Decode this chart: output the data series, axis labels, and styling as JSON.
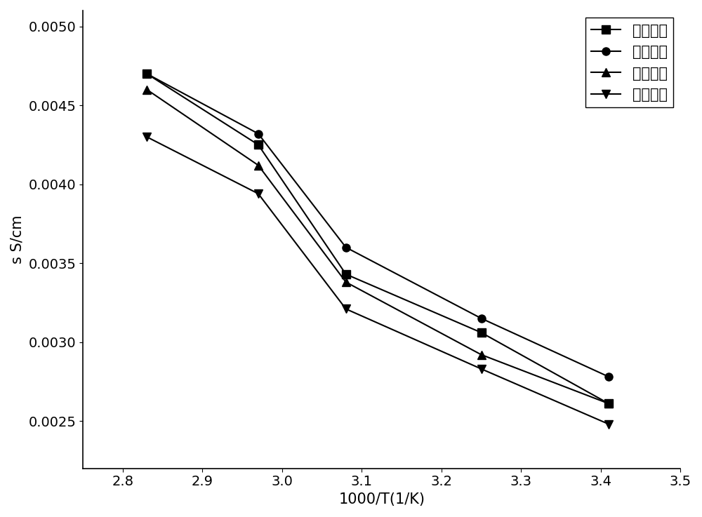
{
  "series": [
    {
      "label": "实施例四",
      "marker": "s",
      "x": [
        2.83,
        2.97,
        3.08,
        3.25,
        3.41
      ],
      "y": [
        0.0047,
        0.00425,
        0.00343,
        0.00306,
        0.00261
      ]
    },
    {
      "label": "实施例一",
      "marker": "o",
      "x": [
        2.83,
        2.97,
        3.08,
        3.25,
        3.41
      ],
      "y": [
        0.0047,
        0.00432,
        0.0036,
        0.00315,
        0.00278
      ]
    },
    {
      "label": "实施例三",
      "marker": "^",
      "x": [
        2.83,
        2.97,
        3.08,
        3.25,
        3.41
      ],
      "y": [
        0.0046,
        0.00412,
        0.00338,
        0.00292,
        0.00261
      ]
    },
    {
      "label": "实施例二",
      "marker": "v",
      "x": [
        2.83,
        2.97,
        3.08,
        3.25,
        3.41
      ],
      "y": [
        0.0043,
        0.00394,
        0.00321,
        0.00283,
        0.00248
      ]
    }
  ],
  "xlabel": "1000/T(1/K)",
  "ylabel": "s S/cm",
  "xlim": [
    2.75,
    3.5
  ],
  "ylim": [
    0.0022,
    0.0051
  ],
  "xticks": [
    2.8,
    2.9,
    3.0,
    3.1,
    3.2,
    3.3,
    3.4,
    3.5
  ],
  "yticks": [
    0.0025,
    0.003,
    0.0035,
    0.004,
    0.0045,
    0.005
  ],
  "line_color": "black",
  "marker_size": 8,
  "line_width": 1.5,
  "legend_loc": "upper right",
  "font_size": 15,
  "tick_font_size": 14,
  "label_font_size": 15
}
